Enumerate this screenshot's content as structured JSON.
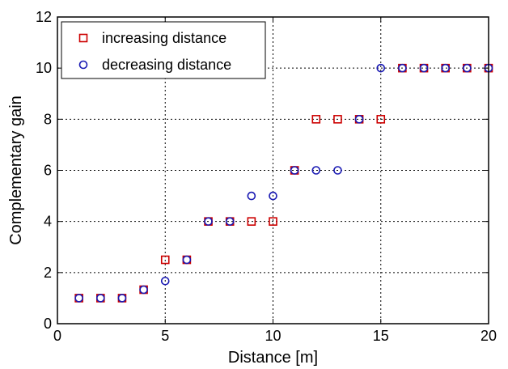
{
  "chart_data": {
    "type": "scatter",
    "title": "",
    "xlabel": "Distance [m]",
    "ylabel": "Complementary gain",
    "xlim": [
      0,
      20
    ],
    "ylim": [
      0,
      12
    ],
    "xticks": [
      "0",
      "5",
      "10",
      "15",
      "20"
    ],
    "yticks": [
      "0",
      "2",
      "4",
      "6",
      "8",
      "10",
      "12"
    ],
    "grid": true,
    "legend_position": "top-left",
    "series": [
      {
        "name": "increasing distance",
        "marker": "square",
        "color": "#cc0000",
        "x": [
          1,
          2,
          3,
          4,
          5,
          6,
          7,
          8,
          9,
          10,
          11,
          12,
          13,
          14,
          15,
          16,
          17,
          18,
          19,
          20
        ],
        "y": [
          1,
          1,
          1,
          1.33,
          2.5,
          2.5,
          4,
          4,
          4,
          4,
          6,
          8,
          8,
          8,
          8,
          10,
          10,
          10,
          10,
          10
        ]
      },
      {
        "name": "decreasing distance",
        "marker": "circle",
        "color": "#1a1ab3",
        "x": [
          1,
          2,
          3,
          4,
          5,
          6,
          7,
          8,
          9,
          10,
          11,
          12,
          13,
          14,
          15,
          16,
          17,
          18,
          19,
          20
        ],
        "y": [
          1,
          1,
          1,
          1.33,
          1.67,
          2.5,
          4,
          4,
          5,
          5,
          6,
          6,
          6,
          8,
          10,
          10,
          10,
          10,
          10,
          10
        ]
      }
    ]
  }
}
